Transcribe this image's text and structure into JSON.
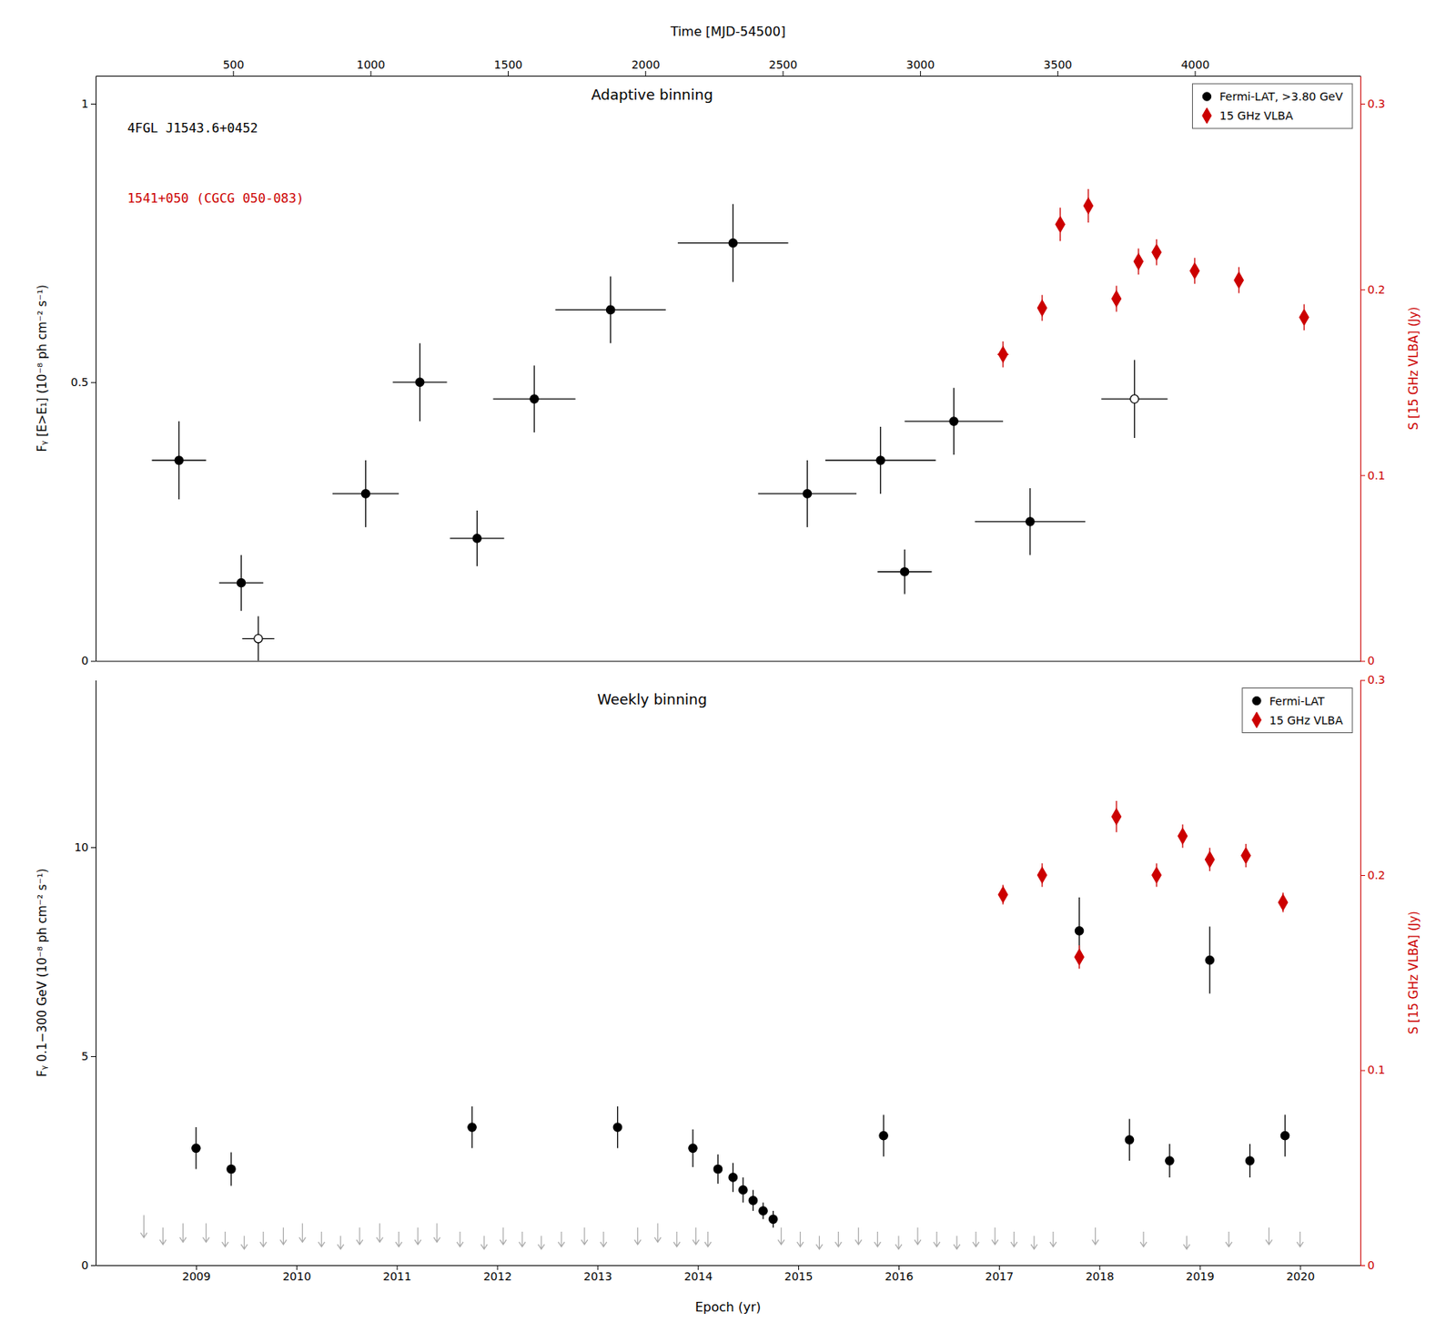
{
  "chart_data": [
    {
      "type": "scatter",
      "title": "Adaptive binning",
      "xlim": [
        2008.0,
        2020.6
      ],
      "x2label": "Time [MJD-54500]",
      "x2lim": [
        0,
        4602.15
      ],
      "x2ticks": [
        500,
        1000,
        1500,
        2000,
        2500,
        3000,
        3500,
        4000
      ],
      "ylabel": "Fᵧ [E>E₁] (10⁻⁸ ph cm⁻² s⁻¹)",
      "ylim": [
        0,
        1.05
      ],
      "yticks": [
        0,
        0.5,
        1
      ],
      "y2label": "S [15 GHz VLBA] (Jy)",
      "y2lim": [
        0,
        0.315
      ],
      "y2ticks": [
        0,
        0.1,
        0.2,
        0.3
      ],
      "legend": "upper right",
      "annotations": [
        {
          "text": "4FGL J1543.6+0452",
          "color": "black"
        },
        {
          "text": "1541+050 (CGCG 050-083)",
          "color": "#cc0000"
        }
      ],
      "series": [
        {
          "name": "Fermi-LAT, >3.80 GeV",
          "color": "black",
          "marker": "circle",
          "x": [
            2008.83,
            2009.45,
            2009.62,
            2010.69,
            2011.23,
            2011.8,
            2012.37,
            2013.13,
            2014.35,
            2015.09,
            2015.82,
            2016.06,
            2016.55,
            2017.31,
            2018.35
          ],
          "values": [
            0.36,
            0.14,
            0.04,
            0.3,
            0.5,
            0.22,
            0.47,
            0.63,
            0.75,
            0.3,
            0.36,
            0.16,
            0.43,
            0.25,
            0.47
          ],
          "xerr": [
            0.27,
            0.22,
            0.16,
            0.33,
            0.27,
            0.27,
            0.41,
            0.55,
            0.55,
            0.49,
            0.55,
            0.27,
            0.49,
            0.55,
            0.33
          ],
          "yerr": [
            0.07,
            0.05,
            0.04,
            0.06,
            0.07,
            0.05,
            0.06,
            0.06,
            0.07,
            0.06,
            0.06,
            0.04,
            0.06,
            0.06,
            0.07
          ],
          "open": [
            false,
            false,
            true,
            false,
            false,
            false,
            false,
            false,
            false,
            false,
            false,
            false,
            false,
            false,
            true
          ]
        },
        {
          "name": "15 GHz VLBA",
          "color": "#cc0000",
          "marker": "diamond",
          "axis": "y2",
          "x": [
            2017.04,
            2017.43,
            2017.61,
            2017.89,
            2018.17,
            2018.39,
            2018.57,
            2018.95,
            2019.39,
            2020.04
          ],
          "values": [
            0.165,
            0.19,
            0.235,
            0.245,
            0.195,
            0.215,
            0.22,
            0.21,
            0.205,
            0.185
          ],
          "xerr": [
            0.055,
            0.041,
            0.041,
            0.041,
            0.041,
            0.041,
            0.041,
            0.041,
            0.041,
            0.041
          ],
          "yerr": [
            0.007,
            0.007,
            0.009,
            0.009,
            0.007,
            0.007,
            0.007,
            0.007,
            0.007,
            0.007
          ]
        }
      ]
    },
    {
      "type": "scatter",
      "title": "Weekly binning",
      "xlabel": "Epoch (yr)",
      "xlim": [
        2008.0,
        2020.6
      ],
      "xticks": [
        2009,
        2010,
        2011,
        2012,
        2013,
        2014,
        2015,
        2016,
        2017,
        2018,
        2019,
        2020
      ],
      "ylabel": "Fᵧ 0.1−300 GeV (10⁻⁸ ph cm⁻² s⁻¹)",
      "ylim": [
        0,
        14
      ],
      "yticks": [
        0,
        5,
        10
      ],
      "y2label": "S [15 GHz VLBA] (Jy)",
      "y2lim": [
        0,
        0.3
      ],
      "y2ticks": [
        0,
        0.1,
        0.2,
        0.3
      ],
      "legend": "upper right",
      "series": [
        {
          "name": "Fermi-LAT",
          "color": "black",
          "marker": "circle",
          "x": [
            2009.0,
            2009.35,
            2011.75,
            2013.2,
            2013.95,
            2014.2,
            2014.35,
            2014.45,
            2014.55,
            2014.65,
            2014.75,
            2015.85,
            2017.8,
            2018.3,
            2018.7,
            2019.1,
            2019.5,
            2019.85
          ],
          "values": [
            2.8,
            2.3,
            3.3,
            3.3,
            2.8,
            2.3,
            2.1,
            1.8,
            1.55,
            1.3,
            1.1,
            3.1,
            8.0,
            3.0,
            2.5,
            7.3,
            2.5,
            3.1
          ],
          "yerr": [
            0.5,
            0.4,
            0.5,
            0.5,
            0.45,
            0.35,
            0.35,
            0.3,
            0.25,
            0.2,
            0.2,
            0.5,
            0.8,
            0.5,
            0.4,
            0.8,
            0.4,
            0.5
          ]
        },
        {
          "type": "upper_limit",
          "color": "#aaaaaa",
          "x": [
            2008.48,
            2008.67,
            2008.87,
            2009.1,
            2009.29,
            2009.48,
            2009.67,
            2009.87,
            2010.06,
            2010.25,
            2010.44,
            2010.63,
            2010.83,
            2011.02,
            2011.21,
            2011.4,
            2011.63,
            2011.87,
            2012.06,
            2012.25,
            2012.44,
            2012.64,
            2012.87,
            2013.06,
            2013.4,
            2013.6,
            2013.79,
            2013.98,
            2014.1,
            2014.83,
            2015.02,
            2015.21,
            2015.4,
            2015.6,
            2015.79,
            2016.0,
            2016.19,
            2016.38,
            2016.58,
            2016.77,
            2016.96,
            2017.15,
            2017.35,
            2017.54,
            2017.96,
            2018.44,
            2018.87,
            2019.29,
            2019.69,
            2020.0
          ],
          "values": [
            1.2,
            0.9,
            1.0,
            1.0,
            0.8,
            0.7,
            0.8,
            0.9,
            1.0,
            0.8,
            0.7,
            0.9,
            1.0,
            0.8,
            0.9,
            1.0,
            0.8,
            0.7,
            0.9,
            0.8,
            0.7,
            0.8,
            0.9,
            0.8,
            0.9,
            1.0,
            0.8,
            0.9,
            0.8,
            0.9,
            0.8,
            0.7,
            0.8,
            0.9,
            0.8,
            0.7,
            0.9,
            0.8,
            0.7,
            0.8,
            0.9,
            0.8,
            0.7,
            0.8,
            0.9,
            0.8,
            0.7,
            0.8,
            0.9,
            0.8
          ]
        },
        {
          "name": "15 GHz VLBA",
          "color": "#cc0000",
          "marker": "diamond",
          "axis": "y2",
          "x": [
            2017.04,
            2017.43,
            2017.8,
            2018.17,
            2018.57,
            2018.83,
            2019.1,
            2019.46,
            2019.83
          ],
          "values": [
            0.19,
            0.2,
            0.158,
            0.23,
            0.2,
            0.22,
            0.208,
            0.21,
            0.186
          ],
          "yerr": [
            0.005,
            0.006,
            0.006,
            0.008,
            0.006,
            0.006,
            0.006,
            0.006,
            0.005
          ]
        }
      ]
    }
  ]
}
